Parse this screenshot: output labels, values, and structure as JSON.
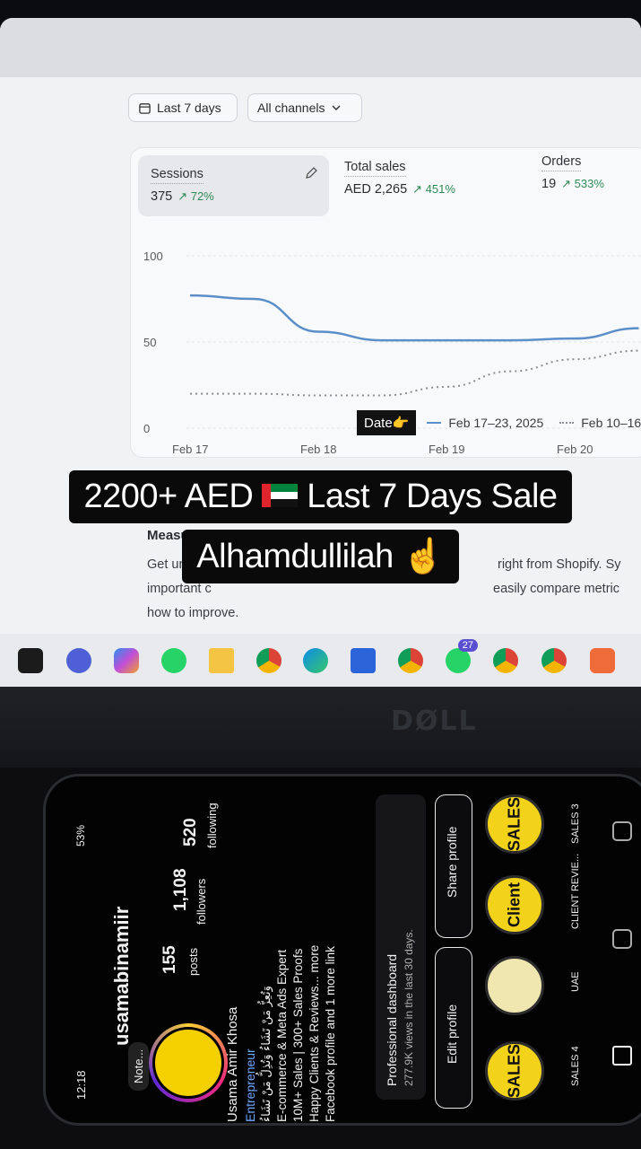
{
  "filters": {
    "date_range": "Last 7 days",
    "channels": "All channels"
  },
  "metrics": {
    "sessions": {
      "label": "Sessions",
      "value": "375",
      "change": "72%"
    },
    "total_sales": {
      "label": "Total sales",
      "value": "AED 2,265",
      "change": "451%"
    },
    "orders": {
      "label": "Orders",
      "value": "19",
      "change": "533%"
    }
  },
  "chart_data": {
    "type": "line",
    "title": "Sessions",
    "categories": [
      "Feb 17",
      "Feb 18",
      "Feb 19",
      "Feb 20"
    ],
    "y_ticks": [
      "100",
      "50",
      "0"
    ],
    "ylim": [
      0,
      100
    ],
    "series": [
      {
        "name": "Feb 17–23, 2025",
        "style": "solid",
        "x": [
          0,
          0.5,
          1,
          1.5,
          2,
          2.5,
          3,
          3.5
        ],
        "values": [
          77,
          75,
          56,
          51,
          51,
          51,
          52,
          58
        ]
      },
      {
        "name": "Feb 10–16",
        "style": "dotted",
        "x": [
          0,
          0.5,
          1,
          1.5,
          2,
          2.5,
          3,
          3.5
        ],
        "values": [
          20,
          20,
          19,
          19,
          24,
          33,
          40,
          45
        ]
      }
    ]
  },
  "legend": {
    "date_tag": "Date👉",
    "current": "Feb 17–23, 2025",
    "previous": "Feb 10–16"
  },
  "section": {
    "heading": "Measure",
    "line1_left": "Get unbias",
    "line1_right": "right from Shopify. Sy",
    "line2_left": "important c",
    "line2_right": "easily compare metric",
    "line3": "how to improve."
  },
  "caption": {
    "line1_left": "2200+ AED",
    "line1_right": "Last 7 Days Sale",
    "line2": "Alhamdullilah ☝️"
  },
  "taskbar": {
    "whatsapp_badge": "27"
  },
  "laptop_brand": "DØLL",
  "phone": {
    "status_time": "12:18",
    "battery": "53%",
    "username": "usamabinamiir",
    "posts": {
      "count": "155",
      "label": "posts"
    },
    "followers": {
      "count": "1,108",
      "label": "followers"
    },
    "following": {
      "count": "520",
      "label": "following"
    },
    "note": "Note...",
    "name": "Usama Amir Khosa",
    "category": "Entrepreneur",
    "bio_arabic": "وَتُعِزُّ مَنْ تَشَاءُ وَتُذِلُّ مَنْ تَشَاءُ",
    "bio_line1": "E-commerce & Meta Ads Expert",
    "bio_line2": "10M+ Sales | 300+ Sales Proofs",
    "bio_line3": "Happy Clients & Reviews... more",
    "bio_line4": "Facebook profile and 1 more link",
    "dashboard_title": "Professional dashboard",
    "dashboard_sub": "277.9K views in the last 30 days.",
    "edit_profile": "Edit profile",
    "share_profile": "Share profile",
    "highlights": [
      {
        "label": "SALES 4",
        "text": "SALES"
      },
      {
        "label": "UAE",
        "text": ""
      },
      {
        "label": "CLIENT REVIE...",
        "text": "Client"
      },
      {
        "label": "SALES 3",
        "text": "SALES"
      }
    ]
  }
}
